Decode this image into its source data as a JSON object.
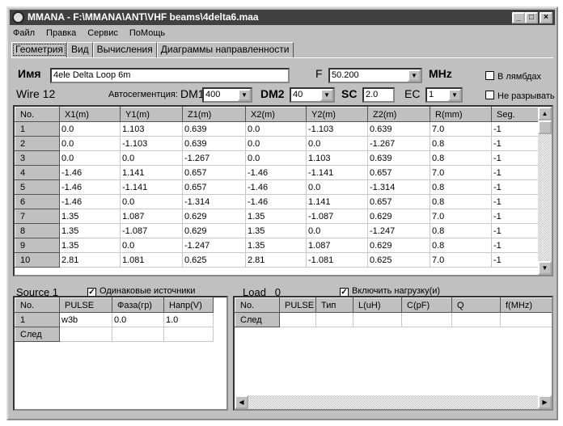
{
  "window": {
    "title": "MMANA - F:\\MMANA\\ANT\\VHF beams\\4delta6.maa",
    "controls": [
      "_",
      "□",
      "×"
    ]
  },
  "menu": [
    "Файл",
    "Правка",
    "Сервис",
    "ПоМощь"
  ],
  "tabs": [
    {
      "label": "Геометрия",
      "active": true
    },
    {
      "label": "Вид"
    },
    {
      "label": "Вычисления"
    },
    {
      "label": "Диаграммы направленности"
    }
  ],
  "name": {
    "label": "Имя",
    "value": "4ele Delta Loop 6m"
  },
  "freq": {
    "label": "F",
    "value": "50.200",
    "unit": "MHz"
  },
  "options": {
    "lambda": {
      "label": "В лямбдах",
      "checked": false
    },
    "nobreak": {
      "label": "Не разрывать",
      "checked": false
    }
  },
  "wire": {
    "label": "Wire 12",
    "autoseg": "Автосегментция:",
    "dm1_label": "DM1",
    "dm1": "400",
    "dm2_label": "DM2",
    "dm2": "40",
    "sc_label": "SC",
    "sc": "2.0",
    "ec_label": "EC",
    "ec": "1"
  },
  "wires": {
    "headers": [
      "No.",
      "X1(m)",
      "Y1(m)",
      "Z1(m)",
      "X2(m)",
      "Y2(m)",
      "Z2(m)",
      "R(mm)",
      "Seg."
    ],
    "rows": [
      [
        "1",
        "0.0",
        "1.103",
        "0.639",
        "0.0",
        "-1.103",
        "0.639",
        "7.0",
        "-1"
      ],
      [
        "2",
        "0.0",
        "-1.103",
        "0.639",
        "0.0",
        "0.0",
        "-1.267",
        "0.8",
        "-1"
      ],
      [
        "3",
        "0.0",
        "0.0",
        "-1.267",
        "0.0",
        "1.103",
        "0.639",
        "0.8",
        "-1"
      ],
      [
        "4",
        "-1.46",
        "1.141",
        "0.657",
        "-1.46",
        "-1.141",
        "0.657",
        "7.0",
        "-1"
      ],
      [
        "5",
        "-1.46",
        "-1.141",
        "0.657",
        "-1.46",
        "0.0",
        "-1.314",
        "0.8",
        "-1"
      ],
      [
        "6",
        "-1.46",
        "0.0",
        "-1.314",
        "-1.46",
        "1.141",
        "0.657",
        "0.8",
        "-1"
      ],
      [
        "7",
        "1.35",
        "1.087",
        "0.629",
        "1.35",
        "-1.087",
        "0.629",
        "7.0",
        "-1"
      ],
      [
        "8",
        "1.35",
        "-1.087",
        "0.629",
        "1.35",
        "0.0",
        "-1.247",
        "0.8",
        "-1"
      ],
      [
        "9",
        "1.35",
        "0.0",
        "-1.247",
        "1.35",
        "1.087",
        "0.629",
        "0.8",
        "-1"
      ],
      [
        "10",
        "2.81",
        "1.081",
        "0.625",
        "2.81",
        "-1.081",
        "0.625",
        "7.0",
        "-1"
      ]
    ]
  },
  "source": {
    "label": "Source 1",
    "same_label": "Одинаковые источники",
    "same_checked": true,
    "headers": [
      "No.",
      "PULSE",
      "Фаза(гр)",
      "Напр(V)"
    ],
    "rows": [
      [
        "1",
        "w3b",
        "0.0",
        "1.0"
      ],
      [
        "След",
        "",
        "",
        ""
      ]
    ]
  },
  "load": {
    "label": "Load",
    "count": "0",
    "enable_label": "Включить нагрузку(и)",
    "enable_checked": true,
    "headers": [
      "No.",
      "PULSE",
      "Тип",
      "L(uH)",
      "C(pF)",
      "Q",
      "f(MHz)"
    ],
    "rows": [
      [
        "След",
        "",
        "",
        "",
        "",
        "",
        ""
      ]
    ]
  }
}
